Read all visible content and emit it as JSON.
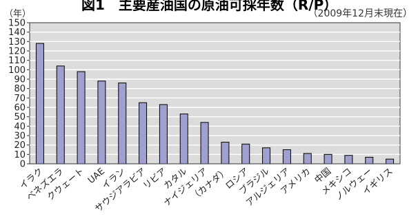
{
  "chart_data": {
    "type": "bar",
    "title": "図1　主要産油国の原油可採年数（R/P）",
    "note": "（2009年12月末現在）",
    "ylabel": "（年）",
    "xlabel": "",
    "categories": [
      "イラク",
      "ベネズエラ",
      "クウェート",
      "UAE",
      "イラン",
      "サウジアラビア",
      "リビア",
      "カタル",
      "ナイジェリア",
      "（カナダ）",
      "ロシア",
      "ブラジル",
      "アルジェリア",
      "アメリカ",
      "中国",
      "メキシコ",
      "ノルウェー",
      "イギリス"
    ],
    "values": [
      128,
      104,
      98,
      88,
      86,
      65,
      63,
      53,
      44,
      23,
      21,
      17,
      15,
      11,
      10,
      9,
      7,
      5
    ],
    "ylim": [
      0,
      150
    ],
    "yticks": [
      0,
      10,
      20,
      30,
      40,
      50,
      60,
      70,
      80,
      90,
      100,
      110,
      120,
      130,
      140,
      150
    ],
    "grid": true,
    "legend": "none",
    "colors": {
      "bar": "#9f9fd0",
      "bar_stroke": "#000000",
      "plot_bg": "#dcdcdc",
      "grid": "#ffffff"
    }
  }
}
